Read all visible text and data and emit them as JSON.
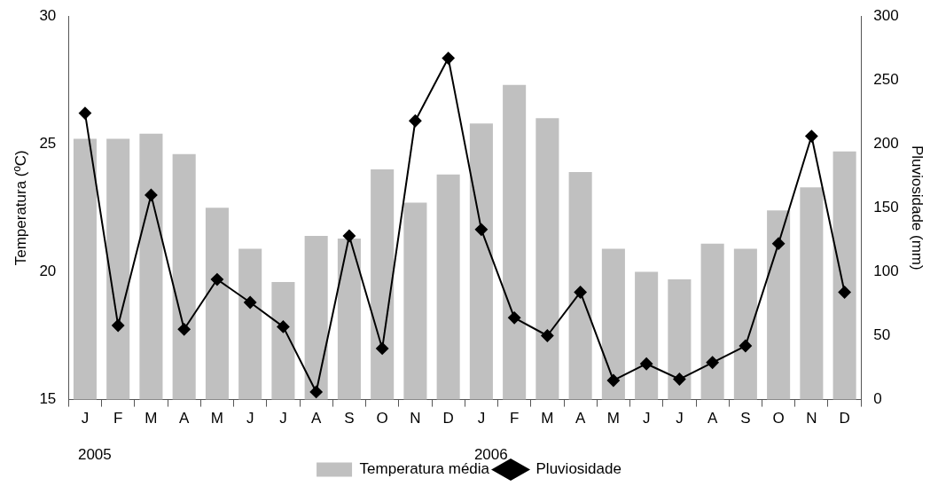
{
  "chart_data": {
    "type": "bar",
    "ylabel": "Temperatura (ºC)",
    "y2label": "Pluviosidade (mm)",
    "categories": [
      "J",
      "F",
      "M",
      "A",
      "M",
      "J",
      "J",
      "A",
      "S",
      "O",
      "N",
      "D",
      "J",
      "F",
      "M",
      "A",
      "M",
      "J",
      "J",
      "A",
      "S",
      "O",
      "N",
      "D"
    ],
    "series": [
      {
        "name": "Temperatura média",
        "color": "#c0c0c0",
        "values": [
          25.2,
          25.2,
          25.4,
          24.6,
          22.5,
          20.9,
          19.6,
          21.4,
          21.3,
          24.0,
          22.7,
          23.8,
          25.8,
          27.3,
          26.0,
          23.9,
          20.9,
          20.0,
          19.7,
          21.1,
          20.9,
          22.4,
          23.3,
          24.7
        ]
      },
      {
        "name": "Pluviosidade",
        "type": "line",
        "axis": "y2",
        "color": "#000000",
        "values": [
          224,
          58,
          160,
          55,
          94,
          76,
          57,
          6,
          128,
          40,
          218,
          267,
          133,
          64,
          50,
          84,
          15,
          28,
          16,
          29,
          42,
          122,
          206,
          84
        ]
      }
    ],
    "ylim": [
      15,
      30
    ],
    "yticks": [
      15,
      20,
      25,
      30
    ],
    "y2lim": [
      0,
      300
    ],
    "y2ticks": [
      0,
      50,
      100,
      150,
      200,
      250,
      300
    ],
    "annotations": [
      "2005",
      "2006"
    ],
    "grid": false,
    "legend": "bottom",
    "marker": "diamond",
    "line_style": "solid"
  }
}
